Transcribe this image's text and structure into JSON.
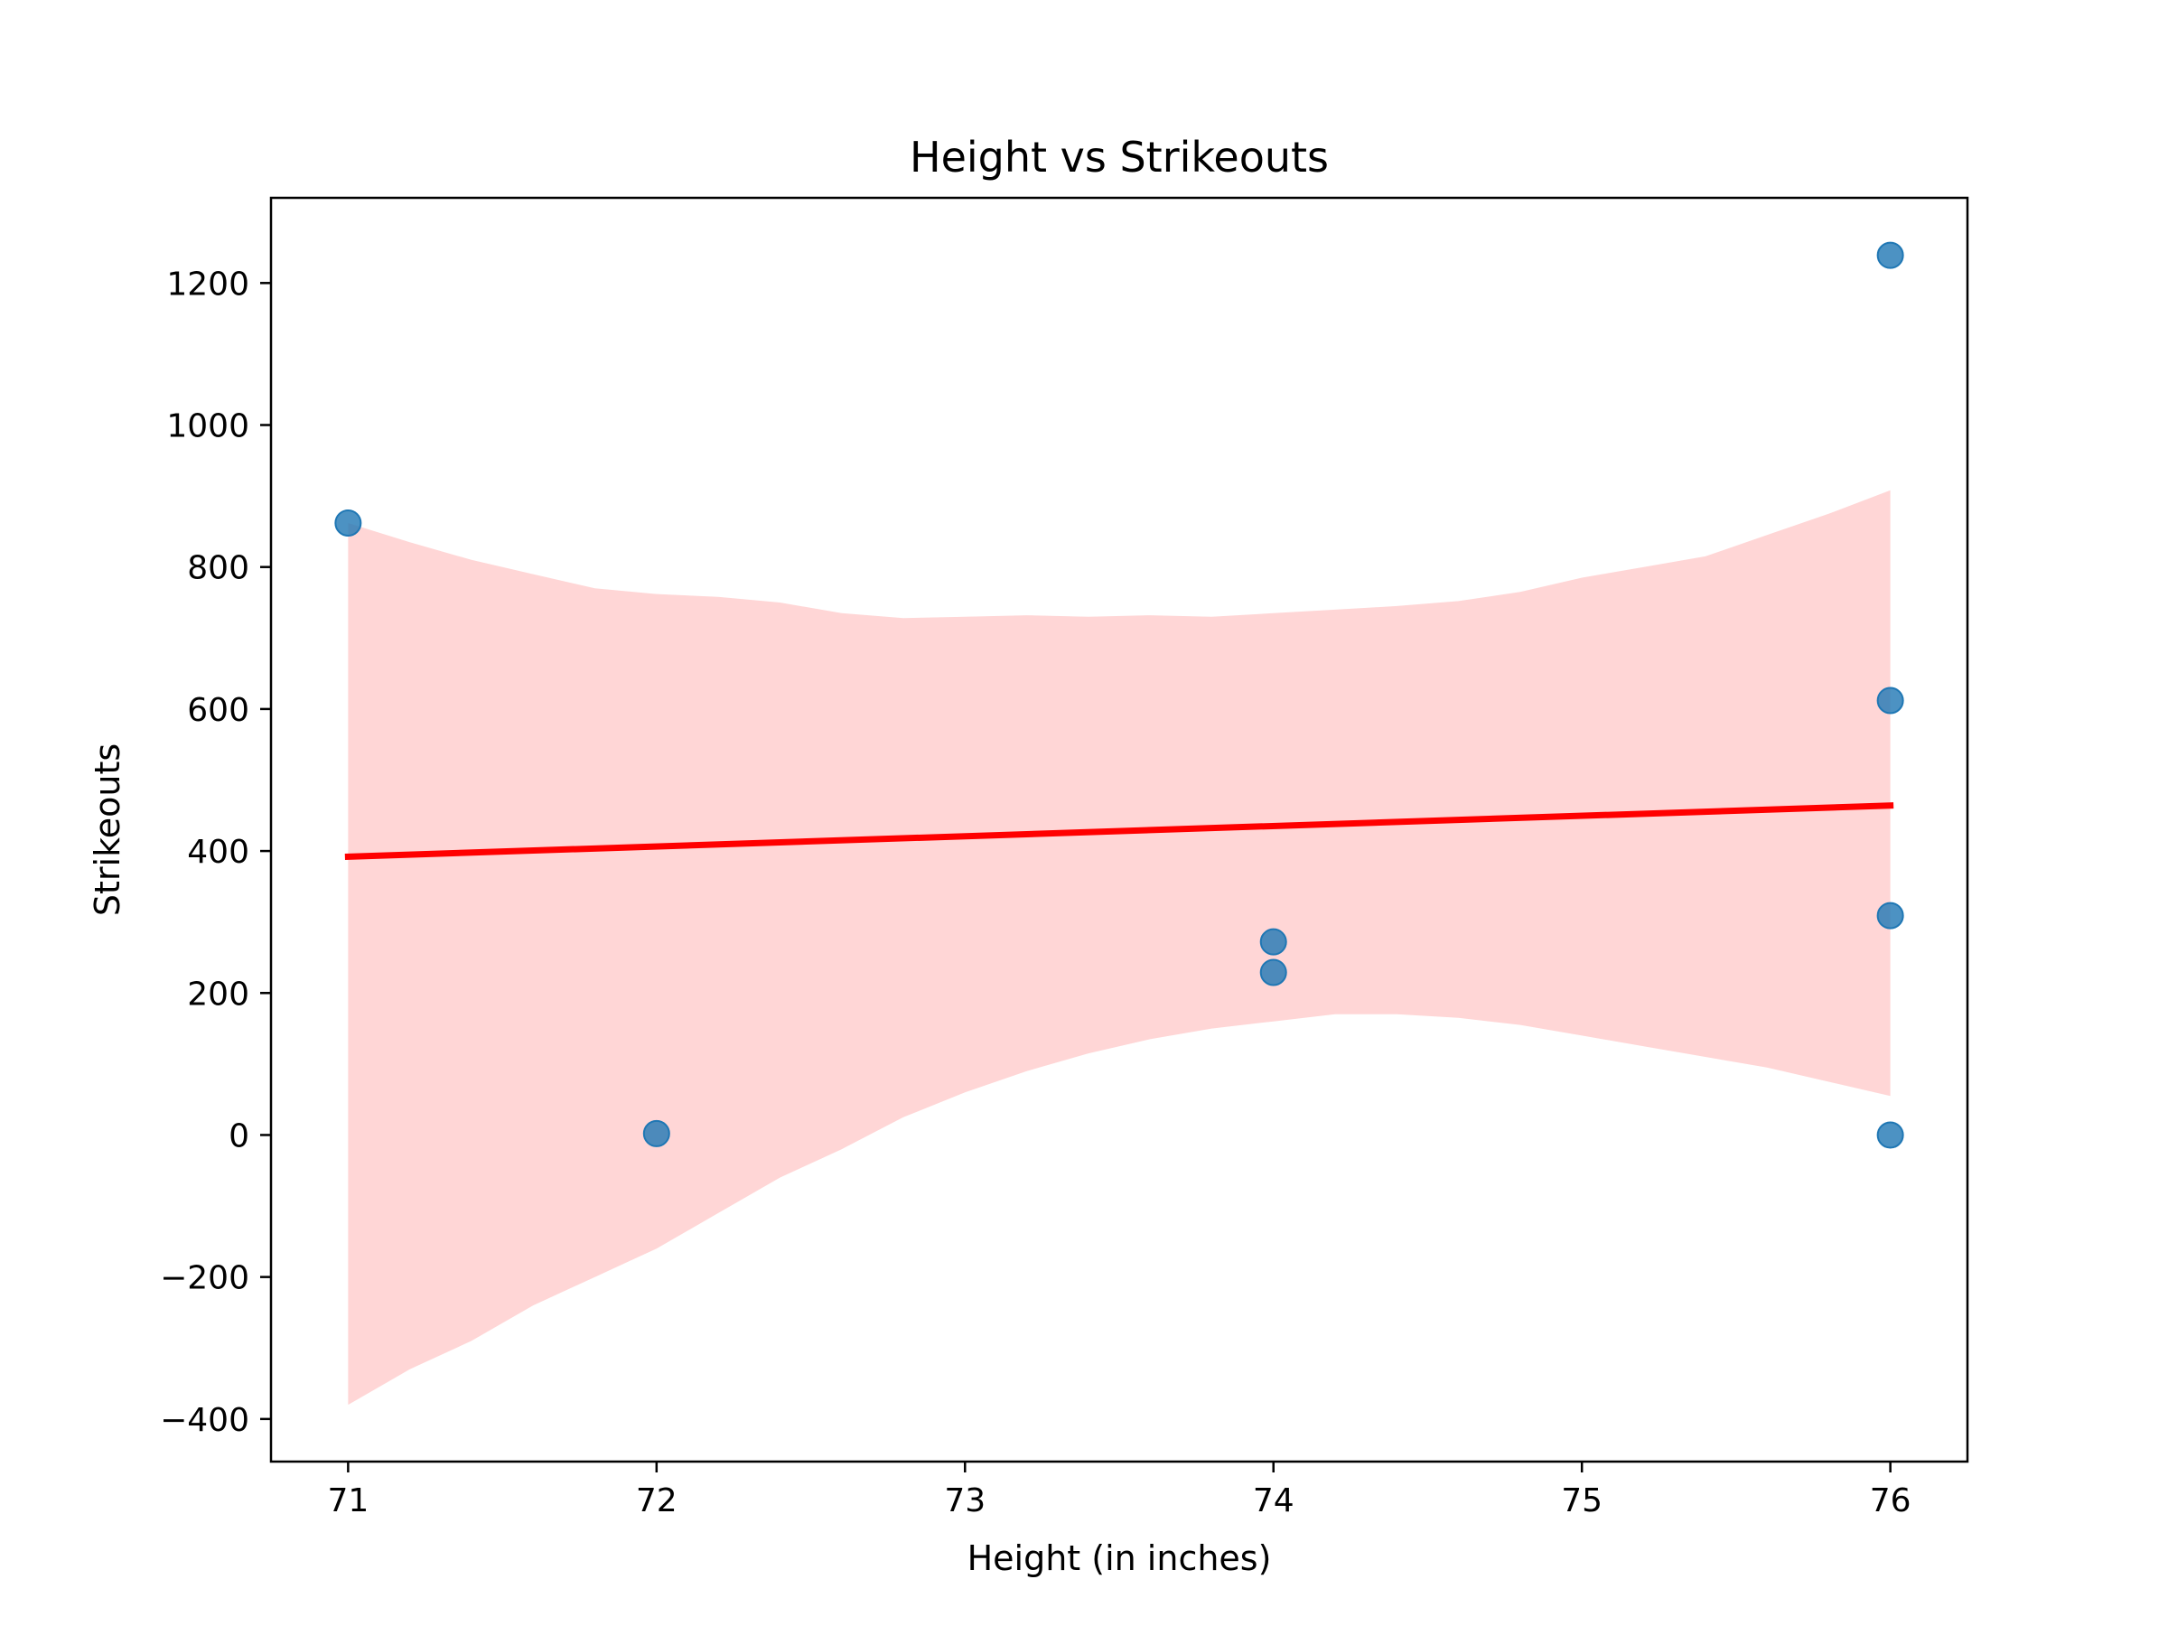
{
  "chart_data": {
    "type": "scatter",
    "title": "Height vs Strikeouts",
    "xlabel": "Height (in inches)",
    "ylabel": "Strikeouts",
    "xlim": [
      70.75,
      76.25
    ],
    "ylim": [
      -460,
      1320
    ],
    "xticks": [
      71,
      72,
      73,
      74,
      75,
      76
    ],
    "yticks": [
      -400,
      -200,
      0,
      200,
      400,
      600,
      800,
      1000,
      1200
    ],
    "tick_labels": {
      "x": [
        "71",
        "72",
        "73",
        "74",
        "75",
        "76"
      ],
      "y": [
        "−400",
        "−200",
        "0",
        "200",
        "400",
        "600",
        "800",
        "1000",
        "1200"
      ]
    },
    "grid": false,
    "legend": "none",
    "points": [
      {
        "x": 71,
        "y": 862
      },
      {
        "x": 72,
        "y": 2
      },
      {
        "x": 74,
        "y": 272
      },
      {
        "x": 74,
        "y": 229
      },
      {
        "x": 76,
        "y": 1239
      },
      {
        "x": 76,
        "y": 612
      },
      {
        "x": 76,
        "y": 309
      },
      {
        "x": 76,
        "y": 0
      }
    ],
    "regression_line": {
      "x": [
        71,
        76
      ],
      "y": [
        392,
        464
      ]
    },
    "confidence_band": {
      "x": [
        71.0,
        71.2,
        71.4,
        71.6,
        71.8,
        72.0,
        72.2,
        72.4,
        72.6,
        72.8,
        73.0,
        73.2,
        73.4,
        73.6,
        73.8,
        74.0,
        74.2,
        74.4,
        74.6,
        74.8,
        75.0,
        75.2,
        75.4,
        75.6,
        75.8,
        76.0
      ],
      "upper": [
        862,
        835,
        810,
        790,
        770,
        762,
        758,
        750,
        735,
        728,
        730,
        732,
        730,
        732,
        730,
        735,
        740,
        745,
        752,
        765,
        785,
        800,
        815,
        845,
        875,
        908
      ],
      "lower": [
        -380,
        -330,
        -290,
        -240,
        -200,
        -160,
        -110,
        -60,
        -20,
        25,
        60,
        90,
        115,
        135,
        150,
        160,
        170,
        170,
        165,
        155,
        140,
        125,
        110,
        95,
        75,
        55
      ]
    },
    "colors": {
      "points": "#1f77b4",
      "line": "#ff0000",
      "band": "#ffd6d6",
      "axes": "#000000"
    }
  }
}
